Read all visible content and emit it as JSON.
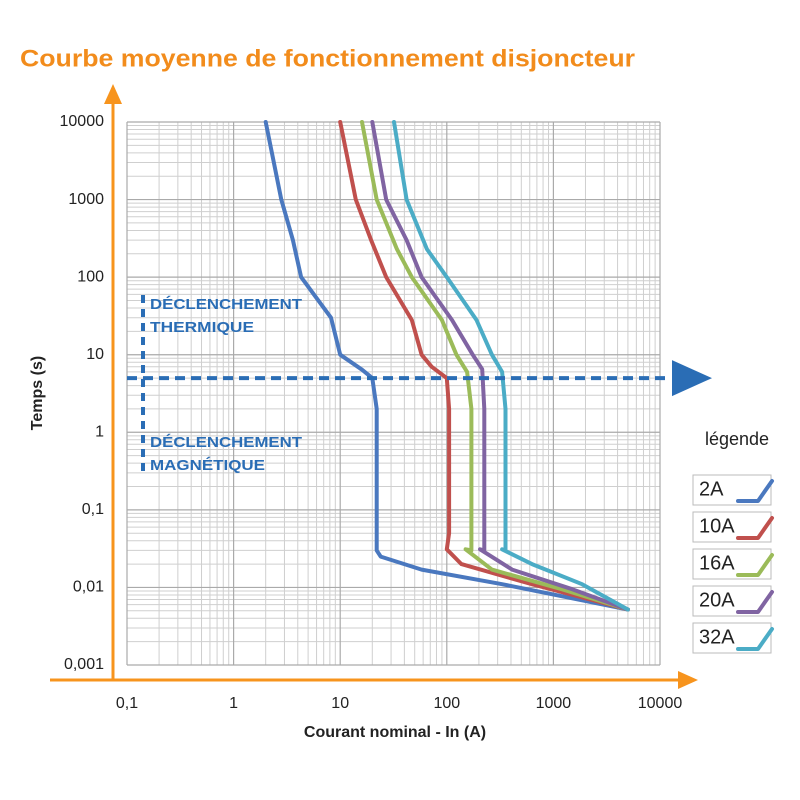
{
  "chart_data": {
    "type": "line",
    "title": "Courbe moyenne de fonctionnement disjoncteur",
    "x_label": "Courant nominal - In (A)",
    "y_label": "Temps (s)",
    "x_log": true,
    "y_log": true,
    "grid": true,
    "xlim": [
      0.1,
      10000
    ],
    "ylim": [
      0.001,
      10000
    ],
    "xticks": [
      {
        "value": 0.1,
        "label": "0,1"
      },
      1,
      10,
      100,
      1000,
      10000
    ],
    "yticks": [
      {
        "value": 0.001,
        "label": "0,001"
      },
      {
        "value": 0.01,
        "label": "0,01"
      },
      {
        "value": 0.1,
        "label": "0,1"
      },
      1,
      10,
      100,
      1000,
      10000
    ],
    "hline": 5,
    "annotations": [
      [
        "DÉCLENCHEMENT",
        "THERMIQUE"
      ],
      [
        "DÉCLENCHEMENT",
        "MAGNÉTIQUE"
      ]
    ],
    "legend_title": "légende",
    "series": [
      {
        "name": "2A",
        "color": "#4a78bf",
        "x": [
          2,
          2.8,
          3.6,
          4.3,
          8.2,
          10,
          16,
          20,
          22,
          22,
          24,
          58,
          330,
          5000
        ],
        "values": [
          10000,
          1000,
          300,
          100,
          30,
          10,
          6.4,
          5,
          2,
          0.03,
          0.025,
          0.017,
          0.011,
          0.0052
        ]
      },
      {
        "name": "10A",
        "color": "#c0504d",
        "x": [
          10,
          14,
          19.5,
          27,
          47,
          58,
          72,
          100,
          105,
          105,
          100,
          137,
          630,
          5000
        ],
        "values": [
          10000,
          1000,
          300,
          100,
          28,
          10,
          7,
          5,
          2,
          0.05,
          0.031,
          0.02,
          0.011,
          0.0052
        ]
      },
      {
        "name": "16A",
        "color": "#9bbb59",
        "x": [
          16,
          22,
          34,
          47,
          90,
          123,
          155,
          170,
          170,
          150,
          265,
          1200,
          5000
        ],
        "values": [
          10000,
          1000,
          230,
          100,
          28,
          10,
          6,
          2,
          0.03,
          0.031,
          0.017,
          0.0095,
          0.0052
        ]
      },
      {
        "name": "20A",
        "color": "#8064a2",
        "x": [
          20,
          27,
          42,
          58,
          112,
          175,
          215,
          225,
          225,
          205,
          410,
          1500,
          5000
        ],
        "values": [
          10000,
          1000,
          300,
          100,
          28,
          10,
          6.5,
          2,
          0.03,
          0.031,
          0.017,
          0.0095,
          0.0052
        ]
      },
      {
        "name": "32A",
        "color": "#4bacc6",
        "x": [
          32,
          42,
          65,
          100,
          190,
          265,
          330,
          355,
          355,
          330,
          630,
          1860,
          5000
        ],
        "values": [
          10000,
          1000,
          230,
          100,
          28,
          10,
          6,
          2,
          0.03,
          0.031,
          0.02,
          0.011,
          0.0052
        ]
      }
    ]
  }
}
